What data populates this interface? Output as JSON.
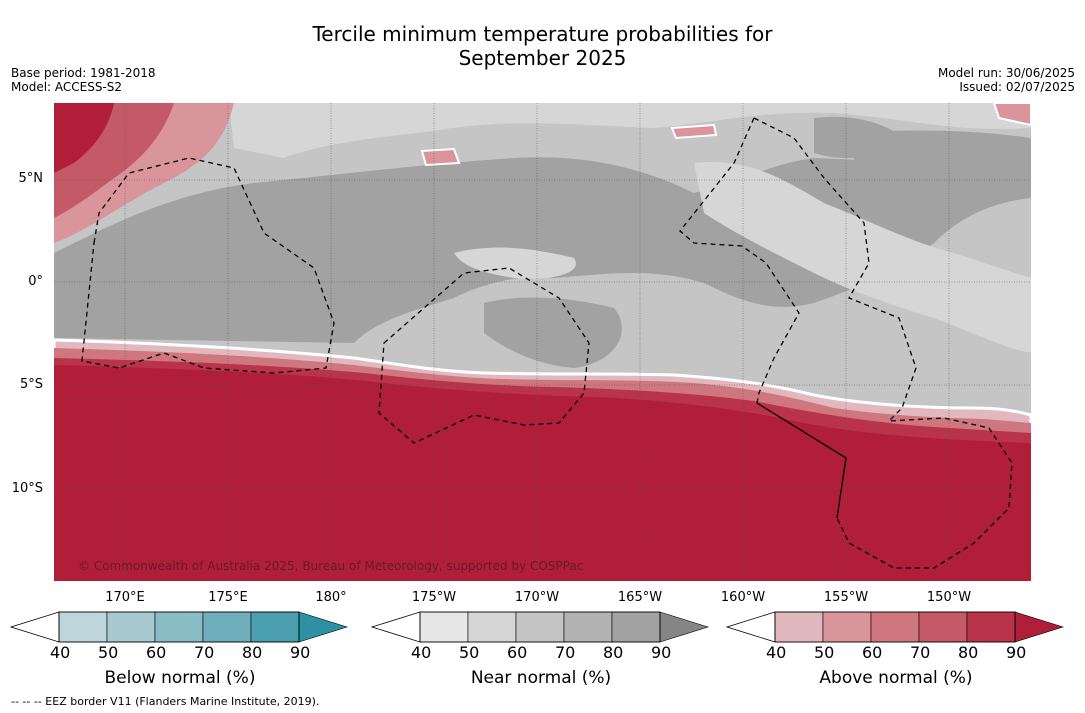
{
  "title_line1": "Tercile minimum temperature probabilities for",
  "title_line2": "September 2025",
  "base_period": "Base period: 1981-2018",
  "model": "Model: ACCESS-S2",
  "model_run": "Model run: 30/06/2025",
  "issued": "Issued: 02/07/2025",
  "copyright": "© Commonwealth of Australia 2025, Bureau of Meteorology, supported by COSPPac",
  "footnote": "--  --  -- EEZ border V11 (Flanders Marine Institute, 2019).",
  "lat_labels": [
    "5°N",
    "0°",
    "5°S",
    "10°S"
  ],
  "lon_labels": [
    "170°E",
    "175°E",
    "180°",
    "175°W",
    "170°W",
    "165°W",
    "160°W",
    "155°W",
    "150°W"
  ],
  "colorbars": [
    {
      "title": "Below normal (%)",
      "ticks": [
        "40",
        "50",
        "60",
        "70",
        "80",
        "90"
      ],
      "colors": [
        "#bfd5dc",
        "#a7c9d0",
        "#8abcc5",
        "#6eafbb",
        "#4c9fae",
        "#2e91a3"
      ]
    },
    {
      "title": "Near normal (%)",
      "ticks": [
        "40",
        "50",
        "60",
        "70",
        "80",
        "90"
      ],
      "colors": [
        "#e7e7e7",
        "#d6d6d6",
        "#c5c5c5",
        "#b3b3b3",
        "#a2a2a2",
        "#858585"
      ]
    },
    {
      "title": "Above normal (%)",
      "ticks": [
        "40",
        "50",
        "60",
        "70",
        "80",
        "90"
      ],
      "colors": [
        "#e1b8bd",
        "#d9949c",
        "#cf777f",
        "#c45a67",
        "#b9334a",
        "#b01e3a"
      ]
    }
  ]
}
